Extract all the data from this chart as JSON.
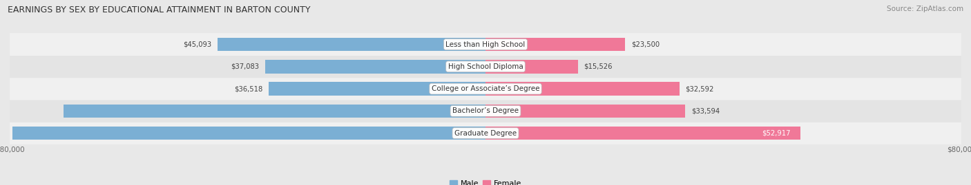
{
  "title": "EARNINGS BY SEX BY EDUCATIONAL ATTAINMENT IN BARTON COUNTY",
  "source": "Source: ZipAtlas.com",
  "categories": [
    "Less than High School",
    "High School Diploma",
    "College or Associate’s Degree",
    "Bachelor’s Degree",
    "Graduate Degree"
  ],
  "male_values": [
    45093,
    37083,
    36518,
    70952,
    79583
  ],
  "female_values": [
    23500,
    15526,
    32592,
    33594,
    52917
  ],
  "male_color": "#7bafd4",
  "female_color": "#f07898",
  "male_label": "Male",
  "female_label": "Female",
  "axis_max": 80000,
  "bg_color": "#e8e8e8",
  "row_colors": [
    "#f0f0f0",
    "#e4e4e4"
  ],
  "title_fontsize": 9.0,
  "source_fontsize": 7.5,
  "value_fontsize": 7.2,
  "category_fontsize": 7.5,
  "axis_fontsize": 7.5,
  "legend_fontsize": 8.0,
  "bar_height": 0.6
}
